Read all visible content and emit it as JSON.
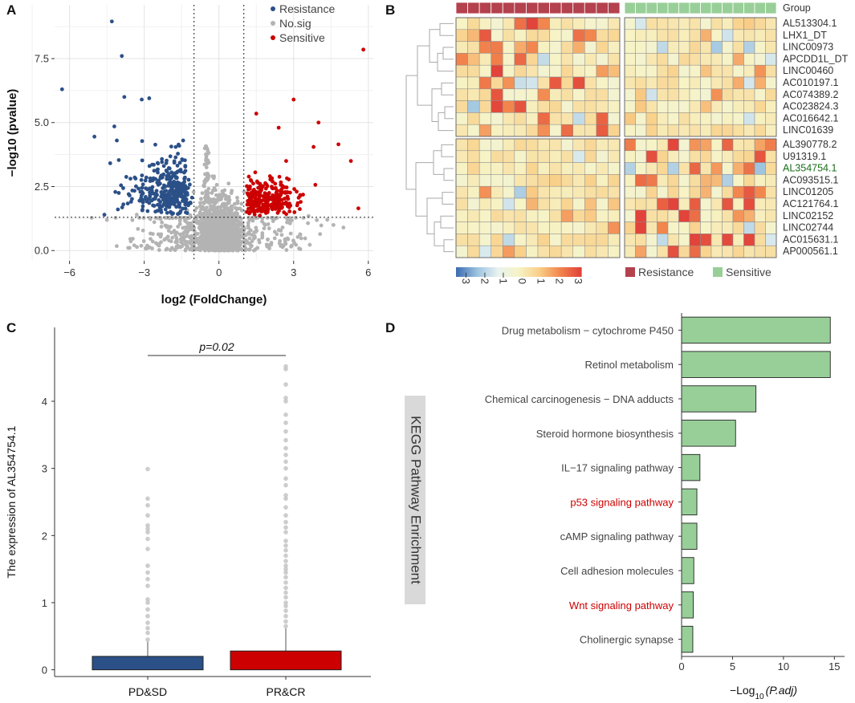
{
  "chart_data": [
    {
      "type": "scatter",
      "panel": "A",
      "xlabel": "log2 (FoldChange)",
      "ylabel": "−log10 (pvalue)",
      "xlim": [
        -6.6,
        6.2
      ],
      "ylim": [
        -0.4,
        9.6
      ],
      "xticks": [
        -6,
        -3,
        0,
        3,
        6
      ],
      "xtick_labels": [
        "−6",
        "−3",
        "0",
        "3",
        "6"
      ],
      "yticks": [
        0,
        2.5,
        5,
        7.5
      ],
      "ytick_labels": [
        "0.0",
        "2.5",
        "5.0",
        "7.5"
      ],
      "thresholds": {
        "fc": [
          -1,
          1
        ],
        "p": 1.3
      },
      "legend": [
        {
          "label": "Resistance",
          "color": "#2b5088"
        },
        {
          "label": "No.sig",
          "color": "#b3b3b3"
        },
        {
          "label": "Sensitive",
          "color": "#cc0000"
        }
      ],
      "highlight_points": {
        "Resistance": [
          [
            -4.3,
            8.95
          ],
          [
            -3.9,
            7.6
          ],
          [
            -6.3,
            6.3
          ],
          [
            -3.8,
            6.0
          ],
          [
            -3.1,
            5.9
          ],
          [
            -2.8,
            5.95
          ],
          [
            -4.2,
            4.85
          ],
          [
            -5.0,
            4.45
          ],
          [
            -4.1,
            4.3
          ],
          [
            -4.6,
            1.4
          ]
        ],
        "Sensitive": [
          [
            5.8,
            7.85
          ],
          [
            3.0,
            5.9
          ],
          [
            4.0,
            5.0
          ],
          [
            1.5,
            5.35
          ],
          [
            2.4,
            4.8
          ],
          [
            3.8,
            4.05
          ],
          [
            4.8,
            4.15
          ],
          [
            5.6,
            1.65
          ],
          [
            5.3,
            3.5
          ]
        ]
      }
    },
    {
      "type": "heatmap",
      "panel": "B",
      "group_label": "Group",
      "genes": [
        "AL513304.1",
        "LHX1_DT",
        "LINC00973",
        "APCDD1L_DT",
        "LINC00460",
        "AC010197.1",
        "AC074389.2",
        "AC023824.3",
        "AC016642.1",
        "LINC01639",
        "AL390778.2",
        "U91319.1",
        "AL354754.1",
        "AC093515.1",
        "LINC01205",
        "AC121764.1",
        "LINC02152",
        "LINC02744",
        "AC015631.1",
        "AP000561.1"
      ],
      "highlight_gene": "AL354754.1",
      "groups": [
        {
          "label": "Resistance",
          "color": "#b4414e",
          "n_samples": 14
        },
        {
          "label": "Sensitive",
          "color": "#98cf98",
          "n_samples": 14
        }
      ],
      "color_scale": {
        "range": [
          -3,
          3
        ],
        "ticks": [
          "−3",
          "−2",
          "−1",
          "0",
          "1",
          "2",
          "3"
        ],
        "colors": [
          "#3f6fb4",
          "#9ec4e0",
          "#e8f3f0",
          "#f7f3c5",
          "#f9cf88",
          "#f2874e",
          "#e2433a"
        ]
      }
    },
    {
      "type": "bar",
      "panel": "C",
      "categories": [
        "PD&SD",
        "PR&CR"
      ],
      "medians": [
        0.0,
        0.0
      ],
      "upper_quartiles": [
        0.2,
        0.28
      ],
      "whisker_max": [
        0.42,
        0.62
      ],
      "colors": [
        "#2b5088",
        "#cc0000"
      ],
      "ylabel": "The expression of  AL354754.1",
      "yticks": [
        "0",
        "1",
        "2",
        "3",
        "4"
      ],
      "ylim": [
        -0.1,
        5.1
      ],
      "annotation": "p=0.02",
      "outliers": {
        "PD&SD": [
          0.45,
          0.55,
          0.62,
          0.7,
          0.8,
          0.9,
          1.0,
          1.05,
          1.25,
          1.35,
          1.45,
          1.55,
          1.8,
          1.95,
          2.05,
          2.1,
          2.15,
          2.3,
          2.45,
          2.55,
          2.99
        ],
        "PR&CR": [
          0.65,
          0.72,
          0.8,
          0.88,
          0.95,
          1.0,
          1.08,
          1.15,
          1.22,
          1.3,
          1.38,
          1.45,
          1.5,
          1.55,
          1.62,
          1.7,
          1.78,
          1.85,
          1.92,
          2.05,
          2.12,
          2.2,
          2.3,
          2.42,
          2.55,
          2.6,
          2.75,
          2.85,
          3.0,
          3.1,
          3.2,
          3.3,
          3.42,
          3.55,
          3.68,
          3.8,
          4.0,
          4.05,
          4.25,
          4.48,
          4.52
        ]
      }
    },
    {
      "type": "bar",
      "panel": "D",
      "orientation": "horizontal",
      "title": "KEGG Pathway Enrichment",
      "xlabel_main": "−Log",
      "xlabel_sub": "10",
      "xlabel_paren": "(P.adj)",
      "categories": [
        "Drug metabolism − cytochrome P450",
        "Retinol metabolism",
        "Chemical carcinogenesis − DNA adducts",
        "Steroid hormone biosynthesis",
        "IL−17 signaling pathway",
        "p53 signaling pathway",
        "cAMP signaling pathway",
        "Cell adhesion molecules",
        "Wnt signaling pathway",
        "Cholinergic synapse"
      ],
      "values": [
        14.6,
        14.6,
        7.3,
        5.3,
        1.8,
        1.5,
        1.5,
        1.2,
        1.15,
        1.1
      ],
      "highlighted": [
        "p53 signaling pathway",
        "Wnt signaling pathway"
      ],
      "highlight_color": "#cc0000",
      "bar_color": "#98cf98",
      "xticks": [
        "0",
        "5",
        "10",
        "15"
      ],
      "xlim": [
        0,
        16
      ]
    }
  ],
  "panel_letters": [
    "A",
    "B",
    "C",
    "D"
  ]
}
